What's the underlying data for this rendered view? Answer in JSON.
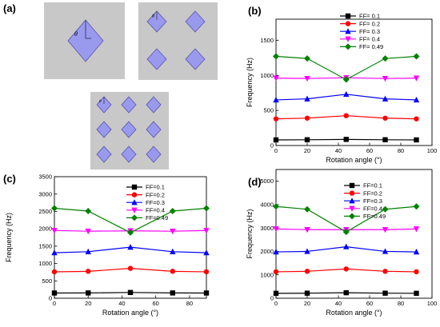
{
  "panels": {
    "a": {
      "letter": "(a)",
      "theta_label": "θ"
    },
    "b": {
      "letter": "(b)"
    },
    "c": {
      "letter": "(c)"
    },
    "d": {
      "letter": "(d)"
    }
  },
  "colors": {
    "series": [
      "#000000",
      "#ff0000",
      "#0000ff",
      "#ff00ff",
      "#008000"
    ],
    "unit_cell_bg": "#c8c8c8",
    "inclusion_fill": "#9999ee",
    "inclusion_stroke": "#5555aa"
  },
  "chart_data": [
    {
      "id": "b",
      "type": "line",
      "xlabel": "Rotation angle (°)",
      "ylabel": "Frequency (Hz)",
      "xlim": [
        0,
        100
      ],
      "ylim": [
        0,
        1800
      ],
      "xticks": [
        "0",
        "20",
        "40",
        "60",
        "80",
        "100"
      ],
      "yticks": [
        "0",
        "500",
        "1000",
        "1500"
      ],
      "legend_position": "top-left",
      "x": [
        0,
        20,
        45,
        70,
        90
      ],
      "series": [
        {
          "name": "FF= 0.1",
          "marker": "square",
          "values": [
            80,
            82,
            87,
            82,
            80
          ]
        },
        {
          "name": "FF= 0.2",
          "marker": "circle",
          "values": [
            380,
            390,
            425,
            390,
            380
          ]
        },
        {
          "name": "FF= 0.3",
          "marker": "triangle",
          "values": [
            650,
            665,
            730,
            665,
            650
          ]
        },
        {
          "name": "FF= 0.4",
          "marker": "triangle-down",
          "values": [
            960,
            955,
            965,
            955,
            960
          ]
        },
        {
          "name": "FF= 0.49",
          "marker": "diamond",
          "values": [
            1270,
            1240,
            940,
            1240,
            1270
          ]
        }
      ]
    },
    {
      "id": "c",
      "type": "line",
      "xlabel": "Rotation angle (°)",
      "ylabel": "Frequency (Hz)",
      "xlim": [
        0,
        90
      ],
      "ylim": [
        0,
        3500
      ],
      "xticks": [
        "0",
        "20",
        "40",
        "60",
        "80"
      ],
      "yticks": [
        "0",
        "500",
        "1000",
        "1500",
        "2000",
        "2500",
        "3000",
        "3500"
      ],
      "legend_position": "top-right",
      "x": [
        0,
        20,
        45,
        70,
        90
      ],
      "series": [
        {
          "name": "FF=0.1",
          "marker": "square",
          "values": [
            150,
            152,
            165,
            152,
            150
          ]
        },
        {
          "name": "FF=0.2",
          "marker": "circle",
          "values": [
            760,
            775,
            860,
            775,
            760
          ]
        },
        {
          "name": "FF=0.3",
          "marker": "triangle",
          "values": [
            1310,
            1340,
            1470,
            1340,
            1310
          ]
        },
        {
          "name": "FF=0.4",
          "marker": "triangle-down",
          "values": [
            1950,
            1930,
            1940,
            1930,
            1950
          ]
        },
        {
          "name": "FF=0.49",
          "marker": "diamond",
          "values": [
            2590,
            2510,
            1890,
            2510,
            2590
          ]
        }
      ]
    },
    {
      "id": "d",
      "type": "line",
      "xlabel": "Rotation angle (°)",
      "ylabel": "Frequency (Hz)",
      "xlim": [
        0,
        100
      ],
      "ylim": [
        0,
        5500
      ],
      "xticks": [
        "0",
        "20",
        "40",
        "60",
        "80",
        "100"
      ],
      "yticks": [
        "0",
        "1000",
        "2000",
        "3000",
        "4000",
        "5000"
      ],
      "legend_position": "top-left",
      "x": [
        0,
        20,
        45,
        70,
        90
      ],
      "series": [
        {
          "name": "FF=0.1",
          "marker": "square",
          "values": [
            210,
            215,
            235,
            215,
            210
          ]
        },
        {
          "name": "FF=0.2",
          "marker": "circle",
          "values": [
            1130,
            1150,
            1250,
            1150,
            1130
          ]
        },
        {
          "name": "FF=0.3",
          "marker": "triangle",
          "values": [
            1980,
            2000,
            2200,
            2000,
            1980
          ]
        },
        {
          "name": "FF=0.4",
          "marker": "triangle-down",
          "values": [
            2960,
            2930,
            2930,
            2930,
            2960
          ]
        },
        {
          "name": "FF=0.49",
          "marker": "diamond",
          "values": [
            3920,
            3800,
            2830,
            3800,
            3920
          ]
        }
      ]
    }
  ]
}
